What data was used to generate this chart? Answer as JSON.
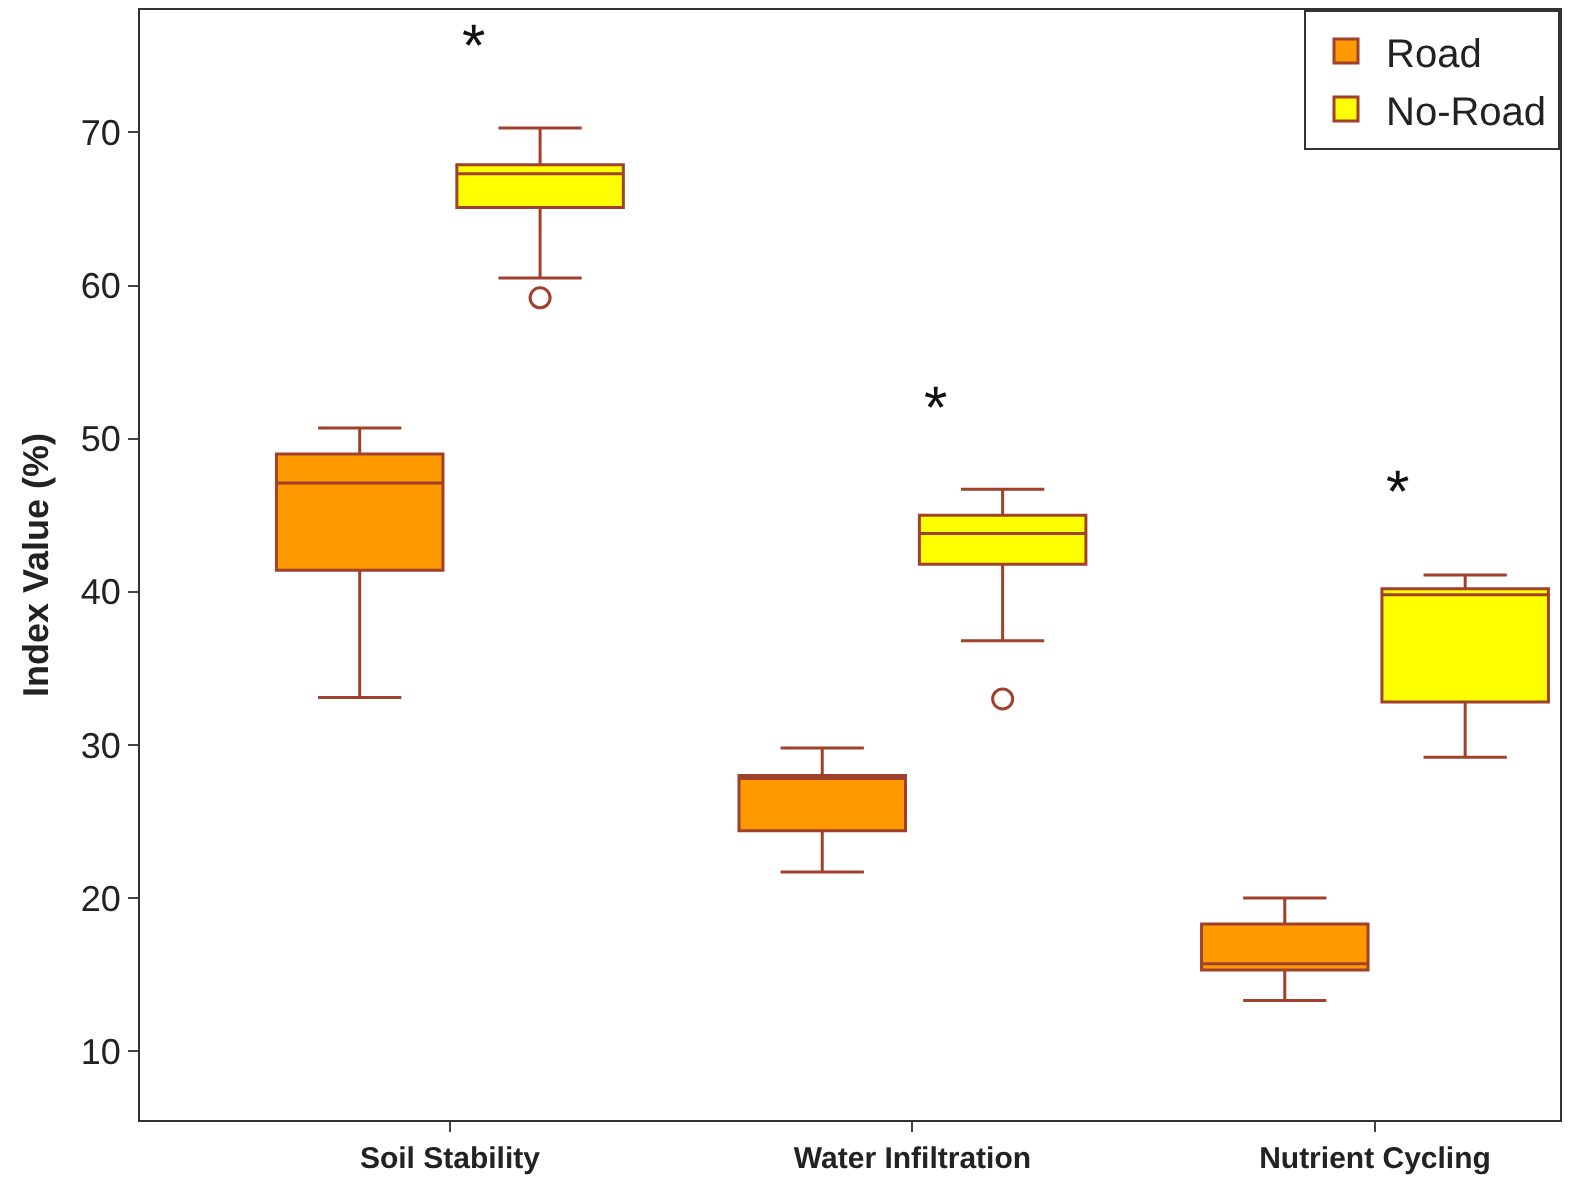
{
  "chart_data": {
    "type": "box",
    "ylabel": "Index Value (%)",
    "categories": [
      "Soil Stability",
      "Water Infiltration",
      "Nutrient Cycling"
    ],
    "series": [
      {
        "name": "Road",
        "color": "#ff9900",
        "boxes": [
          {
            "low": 33.1,
            "q1": 41.4,
            "median": 47.1,
            "q3": 49.0,
            "high": 50.7
          },
          {
            "low": 21.7,
            "q1": 24.4,
            "median": 27.8,
            "q3": 28.0,
            "high": 29.8
          },
          {
            "low": 13.3,
            "q1": 15.3,
            "median": 15.7,
            "q3": 18.3,
            "high": 20.0
          }
        ]
      },
      {
        "name": "No-Road",
        "color": "#ffff00",
        "boxes": [
          {
            "low": 60.5,
            "q1": 65.1,
            "median": 67.3,
            "q3": 67.9,
            "high": 70.3,
            "outliers": [
              59.2
            ]
          },
          {
            "low": 36.8,
            "q1": 41.8,
            "median": 43.8,
            "q3": 45.0,
            "high": 46.7,
            "outliers": [
              33.0
            ]
          },
          {
            "low": 29.2,
            "q1": 32.8,
            "median": 39.8,
            "q3": 40.2,
            "high": 41.1
          }
        ]
      }
    ],
    "ylim": [
      5.5,
      78
    ],
    "yticks": [
      10,
      20,
      30,
      40,
      50,
      60,
      70
    ],
    "grid": false,
    "legend": "top right",
    "annotations": [
      "*",
      "*",
      "*"
    ]
  }
}
